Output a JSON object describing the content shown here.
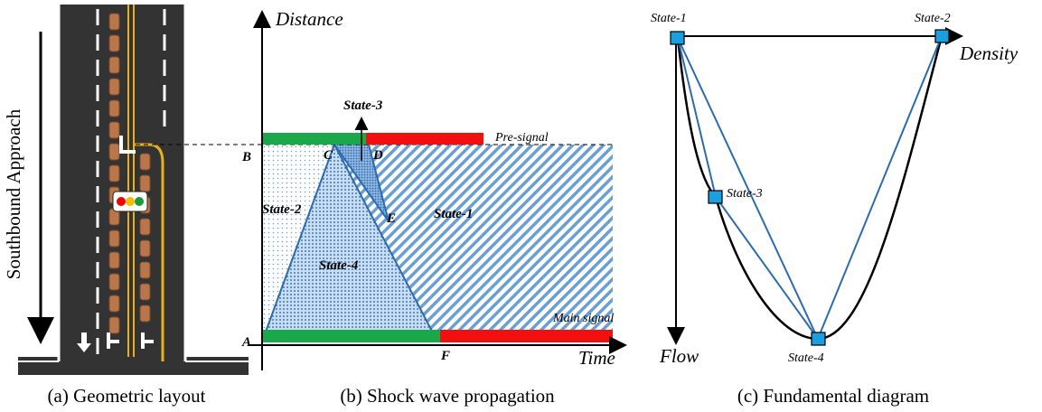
{
  "panels": [
    {
      "approach_label": "Southbound Approach",
      "caption": "(a)  Geometric layout"
    },
    {
      "y_axis": "Distance",
      "x_axis": "Time",
      "pre_signal": "Pre-signal",
      "main_signal": "Main signal",
      "points": [
        "A",
        "B",
        "C",
        "D",
        "E",
        "F"
      ],
      "states": [
        "State-1",
        "State-2",
        "State-3",
        "State-4"
      ],
      "caption": "(b) Shock wave propagation"
    },
    {
      "x_axis": "Density",
      "y_axis": "Flow",
      "states": [
        "State-1",
        "State-2",
        "State-3",
        "State-4"
      ],
      "caption": "(c) Fundamental diagram"
    }
  ]
}
